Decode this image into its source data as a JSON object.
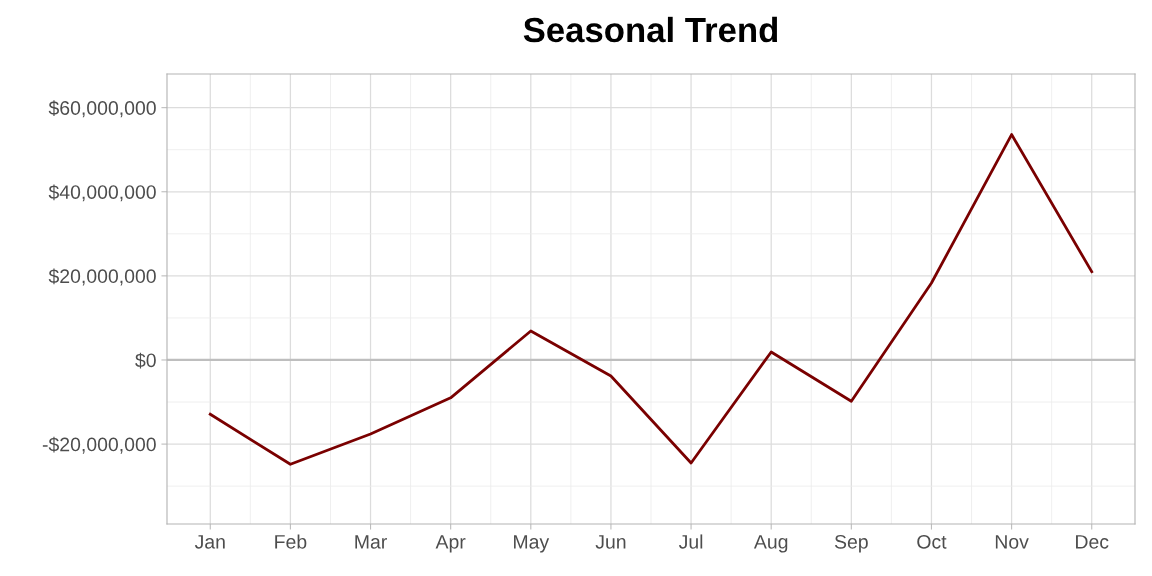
{
  "chart_data": {
    "type": "line",
    "title": "Seasonal Trend",
    "categories": [
      "Jan",
      "Feb",
      "Mar",
      "Apr",
      "May",
      "Jun",
      "Jul",
      "Aug",
      "Sep",
      "Oct",
      "Nov",
      "Dec"
    ],
    "series": [
      {
        "color": "#7a0000",
        "values": [
          -12900000,
          -24800000,
          -17600000,
          -9000000,
          6900000,
          -3800000,
          -24500000,
          1900000,
          -9800000,
          18300000,
          53600000,
          21000000
        ]
      }
    ],
    "ylim": [
      -39000000,
      68000000
    ],
    "yticks": [
      {
        "value": -20000000,
        "label": "-$20,000,000"
      },
      {
        "value": 0,
        "label": "$0"
      },
      {
        "value": 20000000,
        "label": "$20,000,000"
      },
      {
        "value": 40000000,
        "label": "$40,000,000"
      },
      {
        "value": 60000000,
        "label": "$60,000,000"
      }
    ],
    "ref_lines": [
      {
        "axis": "y",
        "value": 0,
        "color": "#bebebe"
      }
    ],
    "grid": true,
    "marker": "none",
    "line_style": "solid"
  }
}
